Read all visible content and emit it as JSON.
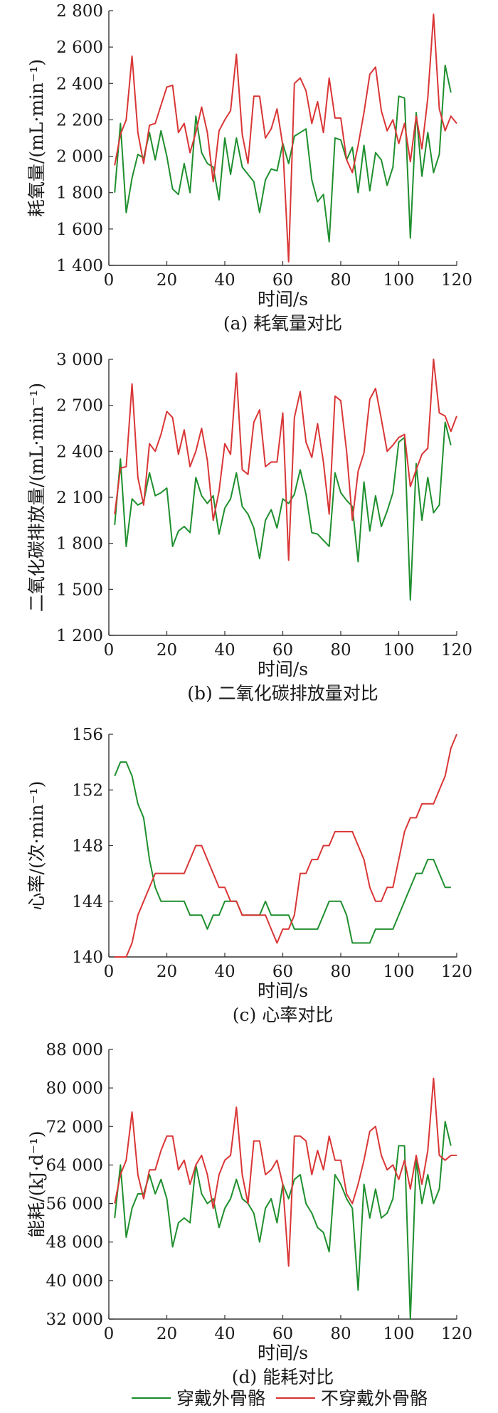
{
  "colors": {
    "green": "#1f8f2e",
    "red": "#d93636",
    "axis": "#333333"
  },
  "legend": {
    "items": [
      {
        "label": "穿戴外骨骼",
        "color": "#1f8f2e"
      },
      {
        "label": "不穿戴外骨骼",
        "color": "#d93636"
      }
    ]
  },
  "chart_data": [
    {
      "type": "line",
      "caption": "(a) 耗氧量对比",
      "ylabel": "耗氧量/(mL·min⁻¹)",
      "xlabel": "时间/s",
      "xlim": [
        0,
        120
      ],
      "ylim": [
        1400,
        2800
      ],
      "xticks": [
        0,
        20,
        40,
        60,
        80,
        100,
        120
      ],
      "xtick_labels": [
        "0",
        "20",
        "40",
        "60",
        "80",
        "100",
        "120"
      ],
      "yticks": [
        1400,
        1600,
        1800,
        2000,
        2200,
        2400,
        2600,
        2800
      ],
      "ytick_labels": [
        "1 400",
        "1 600",
        "1 800",
        "2 000",
        "2 200",
        "2 400",
        "2 600",
        "2 800"
      ],
      "x": [
        2,
        4,
        6,
        8,
        10,
        12,
        14,
        16,
        18,
        20,
        22,
        24,
        26,
        28,
        30,
        32,
        34,
        36,
        38,
        40,
        42,
        44,
        46,
        48,
        50,
        52,
        54,
        56,
        58,
        60,
        62,
        64,
        66,
        68,
        70,
        72,
        74,
        76,
        78,
        80,
        82,
        84,
        86,
        88,
        90,
        92,
        94,
        96,
        98,
        100,
        102,
        104,
        106,
        108,
        110,
        112,
        114,
        116,
        118,
        120
      ],
      "series": [
        {
          "name": "穿戴外骨骼",
          "color": "#1f8f2e",
          "values": [
            1800,
            2180,
            1690,
            1880,
            2010,
            1990,
            2130,
            1980,
            2140,
            2000,
            1820,
            1790,
            1960,
            1800,
            2220,
            2020,
            1960,
            1940,
            1760,
            2100,
            1900,
            2100,
            1940,
            1900,
            1860,
            1690,
            1870,
            1930,
            1920,
            2070,
            1960,
            2110,
            2130,
            2150,
            1870,
            1750,
            1790,
            1530,
            2100,
            2090,
            1980,
            2050,
            1800,
            2060,
            1810,
            2020,
            1980,
            1840,
            1940,
            2330,
            2320,
            1550,
            2240,
            1890,
            2130,
            1910,
            2010,
            2500,
            2350,
            null
          ]
        },
        {
          "name": "不穿戴外骨骼",
          "color": "#d93636",
          "values": [
            1950,
            2120,
            2200,
            2550,
            2130,
            1960,
            2170,
            2180,
            2280,
            2380,
            2390,
            2130,
            2180,
            2020,
            2130,
            2270,
            2130,
            1860,
            2140,
            2200,
            2250,
            2560,
            2120,
            1960,
            2330,
            2330,
            2100,
            2150,
            2260,
            2060,
            1420,
            2400,
            2430,
            2360,
            2180,
            2300,
            2130,
            2430,
            2210,
            2210,
            1980,
            1910,
            2060,
            2240,
            2450,
            2490,
            2250,
            2140,
            2200,
            2070,
            2180,
            1970,
            2220,
            2040,
            2320,
            2780,
            2260,
            2140,
            2220,
            2180
          ]
        }
      ]
    },
    {
      "type": "line",
      "caption": "(b) 二氧化碳排放量对比",
      "ylabel": "二氧化碳排放量/(mL·min⁻¹)",
      "xlabel": "时间/s",
      "xlim": [
        0,
        120
      ],
      "ylim": [
        1200,
        3000
      ],
      "xticks": [
        0,
        20,
        40,
        60,
        80,
        100,
        120
      ],
      "xtick_labels": [
        "0",
        "20",
        "40",
        "60",
        "80",
        "100",
        "120"
      ],
      "yticks": [
        1200,
        1500,
        1800,
        2100,
        2400,
        2700,
        3000
      ],
      "ytick_labels": [
        "1 200",
        "1 500",
        "1 800",
        "2 100",
        "2 400",
        "2 700",
        "3 000"
      ],
      "x": [
        2,
        4,
        6,
        8,
        10,
        12,
        14,
        16,
        18,
        20,
        22,
        24,
        26,
        28,
        30,
        32,
        34,
        36,
        38,
        40,
        42,
        44,
        46,
        48,
        50,
        52,
        54,
        56,
        58,
        60,
        62,
        64,
        66,
        68,
        70,
        72,
        74,
        76,
        78,
        80,
        82,
        84,
        86,
        88,
        90,
        92,
        94,
        96,
        98,
        100,
        102,
        104,
        106,
        108,
        110,
        112,
        114,
        116,
        118,
        120
      ],
      "series": [
        {
          "name": "穿戴外骨骼",
          "color": "#1f8f2e",
          "values": [
            1920,
            2350,
            1780,
            2090,
            2050,
            2070,
            2260,
            2110,
            2130,
            2160,
            1780,
            1880,
            1910,
            1870,
            2230,
            2110,
            2060,
            2110,
            1860,
            2030,
            2090,
            2260,
            2040,
            1990,
            1900,
            1700,
            1950,
            2020,
            1900,
            2090,
            2060,
            2120,
            2280,
            2120,
            1870,
            1860,
            1820,
            1780,
            2260,
            2130,
            2080,
            2040,
            1680,
            2200,
            1880,
            2110,
            1910,
            2010,
            2130,
            2460,
            2490,
            1430,
            2320,
            1950,
            2230,
            2000,
            2050,
            2590,
            2440,
            null
          ]
        },
        {
          "name": "不穿戴外骨骼",
          "color": "#d93636",
          "values": [
            1990,
            2290,
            2300,
            2840,
            2230,
            2050,
            2450,
            2400,
            2510,
            2660,
            2620,
            2380,
            2540,
            2300,
            2400,
            2550,
            2340,
            1950,
            2140,
            2450,
            2380,
            2910,
            2280,
            2250,
            2590,
            2670,
            2300,
            2330,
            2330,
            2650,
            1690,
            2620,
            2790,
            2460,
            2360,
            2580,
            2330,
            1990,
            2760,
            2730,
            2400,
            1950,
            2270,
            2390,
            2740,
            2810,
            2610,
            2400,
            2440,
            2490,
            2510,
            2170,
            2280,
            2380,
            2420,
            3000,
            2650,
            2630,
            2530,
            2630
          ]
        }
      ]
    },
    {
      "type": "line",
      "caption": "(c) 心率对比",
      "ylabel": "心率/(次·min⁻¹)",
      "xlabel": "时间/s",
      "xlim": [
        0,
        120
      ],
      "ylim": [
        140,
        156
      ],
      "xticks": [
        0,
        20,
        40,
        60,
        80,
        100,
        120
      ],
      "xtick_labels": [
        "0",
        "20",
        "40",
        "60",
        "80",
        "100",
        "120"
      ],
      "yticks": [
        140,
        144,
        148,
        152,
        156
      ],
      "ytick_labels": [
        "140",
        "144",
        "148",
        "152",
        "156"
      ],
      "x": [
        2,
        4,
        6,
        8,
        10,
        12,
        14,
        16,
        18,
        20,
        22,
        24,
        26,
        28,
        30,
        32,
        34,
        36,
        38,
        40,
        42,
        44,
        46,
        48,
        50,
        52,
        54,
        56,
        58,
        60,
        62,
        64,
        66,
        68,
        70,
        72,
        74,
        76,
        78,
        80,
        82,
        84,
        86,
        88,
        90,
        92,
        94,
        96,
        98,
        100,
        102,
        104,
        106,
        108,
        110,
        112,
        114,
        116,
        118,
        120
      ],
      "series": [
        {
          "name": "穿戴外骨骼",
          "color": "#1f8f2e",
          "values": [
            153,
            154,
            154,
            153,
            151,
            150,
            147,
            145,
            144,
            144,
            144,
            144,
            144,
            143,
            143,
            143,
            142,
            143,
            143,
            144,
            144,
            144,
            143,
            143,
            143,
            143,
            144,
            143,
            143,
            143,
            143,
            142,
            142,
            142,
            142,
            142,
            143,
            144,
            144,
            144,
            143,
            141,
            141,
            141,
            141,
            142,
            142,
            142,
            142,
            143,
            144,
            145,
            146,
            146,
            147,
            147,
            146,
            145,
            145,
            null
          ]
        },
        {
          "name": "不穿戴外骨骼",
          "color": "#d93636",
          "values": [
            140,
            140,
            140,
            141,
            143,
            144,
            145,
            146,
            146,
            146,
            146,
            146,
            146,
            147,
            148,
            148,
            147,
            146,
            145,
            145,
            144,
            144,
            143,
            143,
            143,
            143,
            143,
            142,
            141,
            142,
            142,
            143,
            146,
            146,
            147,
            147,
            148,
            148,
            149,
            149,
            149,
            149,
            148,
            147,
            145,
            144,
            144,
            145,
            145,
            147,
            149,
            150,
            150,
            151,
            151,
            151,
            152,
            153,
            155,
            156
          ]
        }
      ]
    },
    {
      "type": "line",
      "caption": "(d) 能耗对比",
      "ylabel": "能耗/(kJ·d⁻¹)",
      "xlabel": "时间/s",
      "xlim": [
        0,
        120
      ],
      "ylim": [
        32000,
        88000
      ],
      "xticks": [
        0,
        20,
        40,
        60,
        80,
        100,
        120
      ],
      "xtick_labels": [
        "0",
        "20",
        "40",
        "60",
        "80",
        "100",
        "120"
      ],
      "yticks": [
        32000,
        40000,
        48000,
        56000,
        64000,
        72000,
        80000,
        88000
      ],
      "ytick_labels": [
        "32 000",
        "40 000",
        "48 000",
        "56 000",
        "64 000",
        "72 000",
        "80 000",
        "88 000"
      ],
      "x": [
        2,
        4,
        6,
        8,
        10,
        12,
        14,
        16,
        18,
        20,
        22,
        24,
        26,
        28,
        30,
        32,
        34,
        36,
        38,
        40,
        42,
        44,
        46,
        48,
        50,
        52,
        54,
        56,
        58,
        60,
        62,
        64,
        66,
        68,
        70,
        72,
        74,
        76,
        78,
        80,
        82,
        84,
        86,
        88,
        90,
        92,
        94,
        96,
        98,
        100,
        102,
        104,
        106,
        108,
        110,
        112,
        114,
        116,
        118,
        120
      ],
      "series": [
        {
          "name": "穿戴外骨骼",
          "color": "#1f8f2e",
          "values": [
            53000,
            64000,
            49000,
            55000,
            58000,
            58000,
            62000,
            58000,
            61000,
            57000,
            47000,
            52000,
            53000,
            52000,
            64000,
            58000,
            56000,
            57000,
            51000,
            55000,
            57000,
            61000,
            57000,
            56000,
            54000,
            48000,
            55000,
            57000,
            52000,
            60000,
            57000,
            61000,
            62000,
            56000,
            54000,
            51000,
            50000,
            46000,
            62000,
            60000,
            57000,
            55000,
            38000,
            60000,
            53000,
            59000,
            53000,
            54000,
            57000,
            68000,
            68000,
            32000,
            65000,
            56000,
            62000,
            56000,
            59000,
            73000,
            68000,
            null
          ]
        },
        {
          "name": "不穿戴外骨骼",
          "color": "#d93636",
          "values": [
            56000,
            62000,
            65000,
            75000,
            62000,
            57000,
            63000,
            63000,
            67000,
            70000,
            70000,
            63000,
            65000,
            60000,
            64000,
            66000,
            62000,
            55000,
            62000,
            65000,
            66000,
            76000,
            62000,
            56000,
            69000,
            69000,
            62000,
            63000,
            65000,
            60000,
            43000,
            70000,
            70000,
            69000,
            62000,
            67000,
            63000,
            70000,
            65000,
            65000,
            58000,
            56000,
            60000,
            65000,
            71000,
            72000,
            66000,
            63000,
            64000,
            61000,
            65000,
            59000,
            66000,
            60000,
            67000,
            82000,
            66000,
            65000,
            66000,
            66000
          ]
        }
      ]
    }
  ]
}
